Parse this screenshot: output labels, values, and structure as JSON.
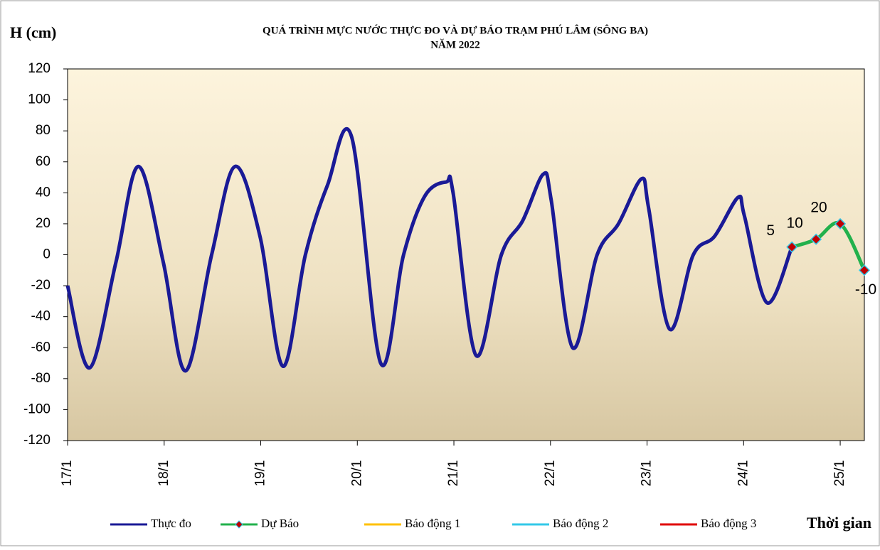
{
  "chart_data": {
    "type": "line",
    "title": "QUÁ TRÌNH MỰC NƯỚC THỰC ĐO VÀ DỰ BÁO TRẠM PHÚ LÂM (SÔNG BA)",
    "subtitle": "NĂM 2022",
    "y_label": "H (cm)",
    "x_label": "Thời gian",
    "x_unit": "hours",
    "xlim": [
      0,
      198
    ],
    "xticks": [
      {
        "value": 0,
        "label": "17/1"
      },
      {
        "value": 24,
        "label": "18/1"
      },
      {
        "value": 48,
        "label": "19/1"
      },
      {
        "value": 72,
        "label": "20/1"
      },
      {
        "value": 96,
        "label": "21/1"
      },
      {
        "value": 120,
        "label": "22/1"
      },
      {
        "value": 144,
        "label": "23/1"
      },
      {
        "value": 168,
        "label": "24/1"
      },
      {
        "value": 192,
        "label": "25/1"
      }
    ],
    "ylim": [
      -120,
      120
    ],
    "yticks": [
      -120,
      -100,
      -80,
      -60,
      -40,
      -20,
      0,
      20,
      40,
      60,
      80,
      100,
      120
    ],
    "series": [
      {
        "name": "Thực đo",
        "color": "#1a1a96",
        "x": [
          0,
          5.5,
          12,
          17.6,
          23.8,
          29.3,
          35.8,
          41.6,
          47.8,
          53.5,
          59.1,
          64.6,
          70.6,
          77.8,
          83.5,
          88.8,
          94.1,
          95.8,
          101.5,
          107.8,
          113.1,
          118.2,
          120.2,
          125.5,
          131.6,
          136.9,
          142.6,
          144.4,
          149.6,
          155.5,
          160.8,
          166.6,
          168.2,
          173.8,
          180
        ],
        "values": [
          -20,
          -73,
          -5,
          57,
          -5,
          -75,
          0,
          57,
          12,
          -72,
          0,
          45,
          76,
          -70,
          0,
          38,
          47,
          40,
          -65,
          0,
          22,
          52,
          35,
          -60,
          0,
          20,
          49,
          30,
          -48,
          0,
          12,
          37,
          25,
          -31,
          5
        ]
      },
      {
        "name": "Dự Báo",
        "color": "#22b14c",
        "marker_color": "#c00000",
        "marker_edge": "#33c8e8",
        "x": [
          180,
          186,
          192,
          198
        ],
        "values": [
          5,
          10,
          20,
          -10
        ],
        "value_labels_shown": true
      }
    ],
    "legend_extra": [
      {
        "name": "Báo động 1",
        "color": "#ffc000"
      },
      {
        "name": "Báo động 2",
        "color": "#33c8e8"
      },
      {
        "name": "Báo động 3",
        "color": "#e00000"
      }
    ]
  }
}
